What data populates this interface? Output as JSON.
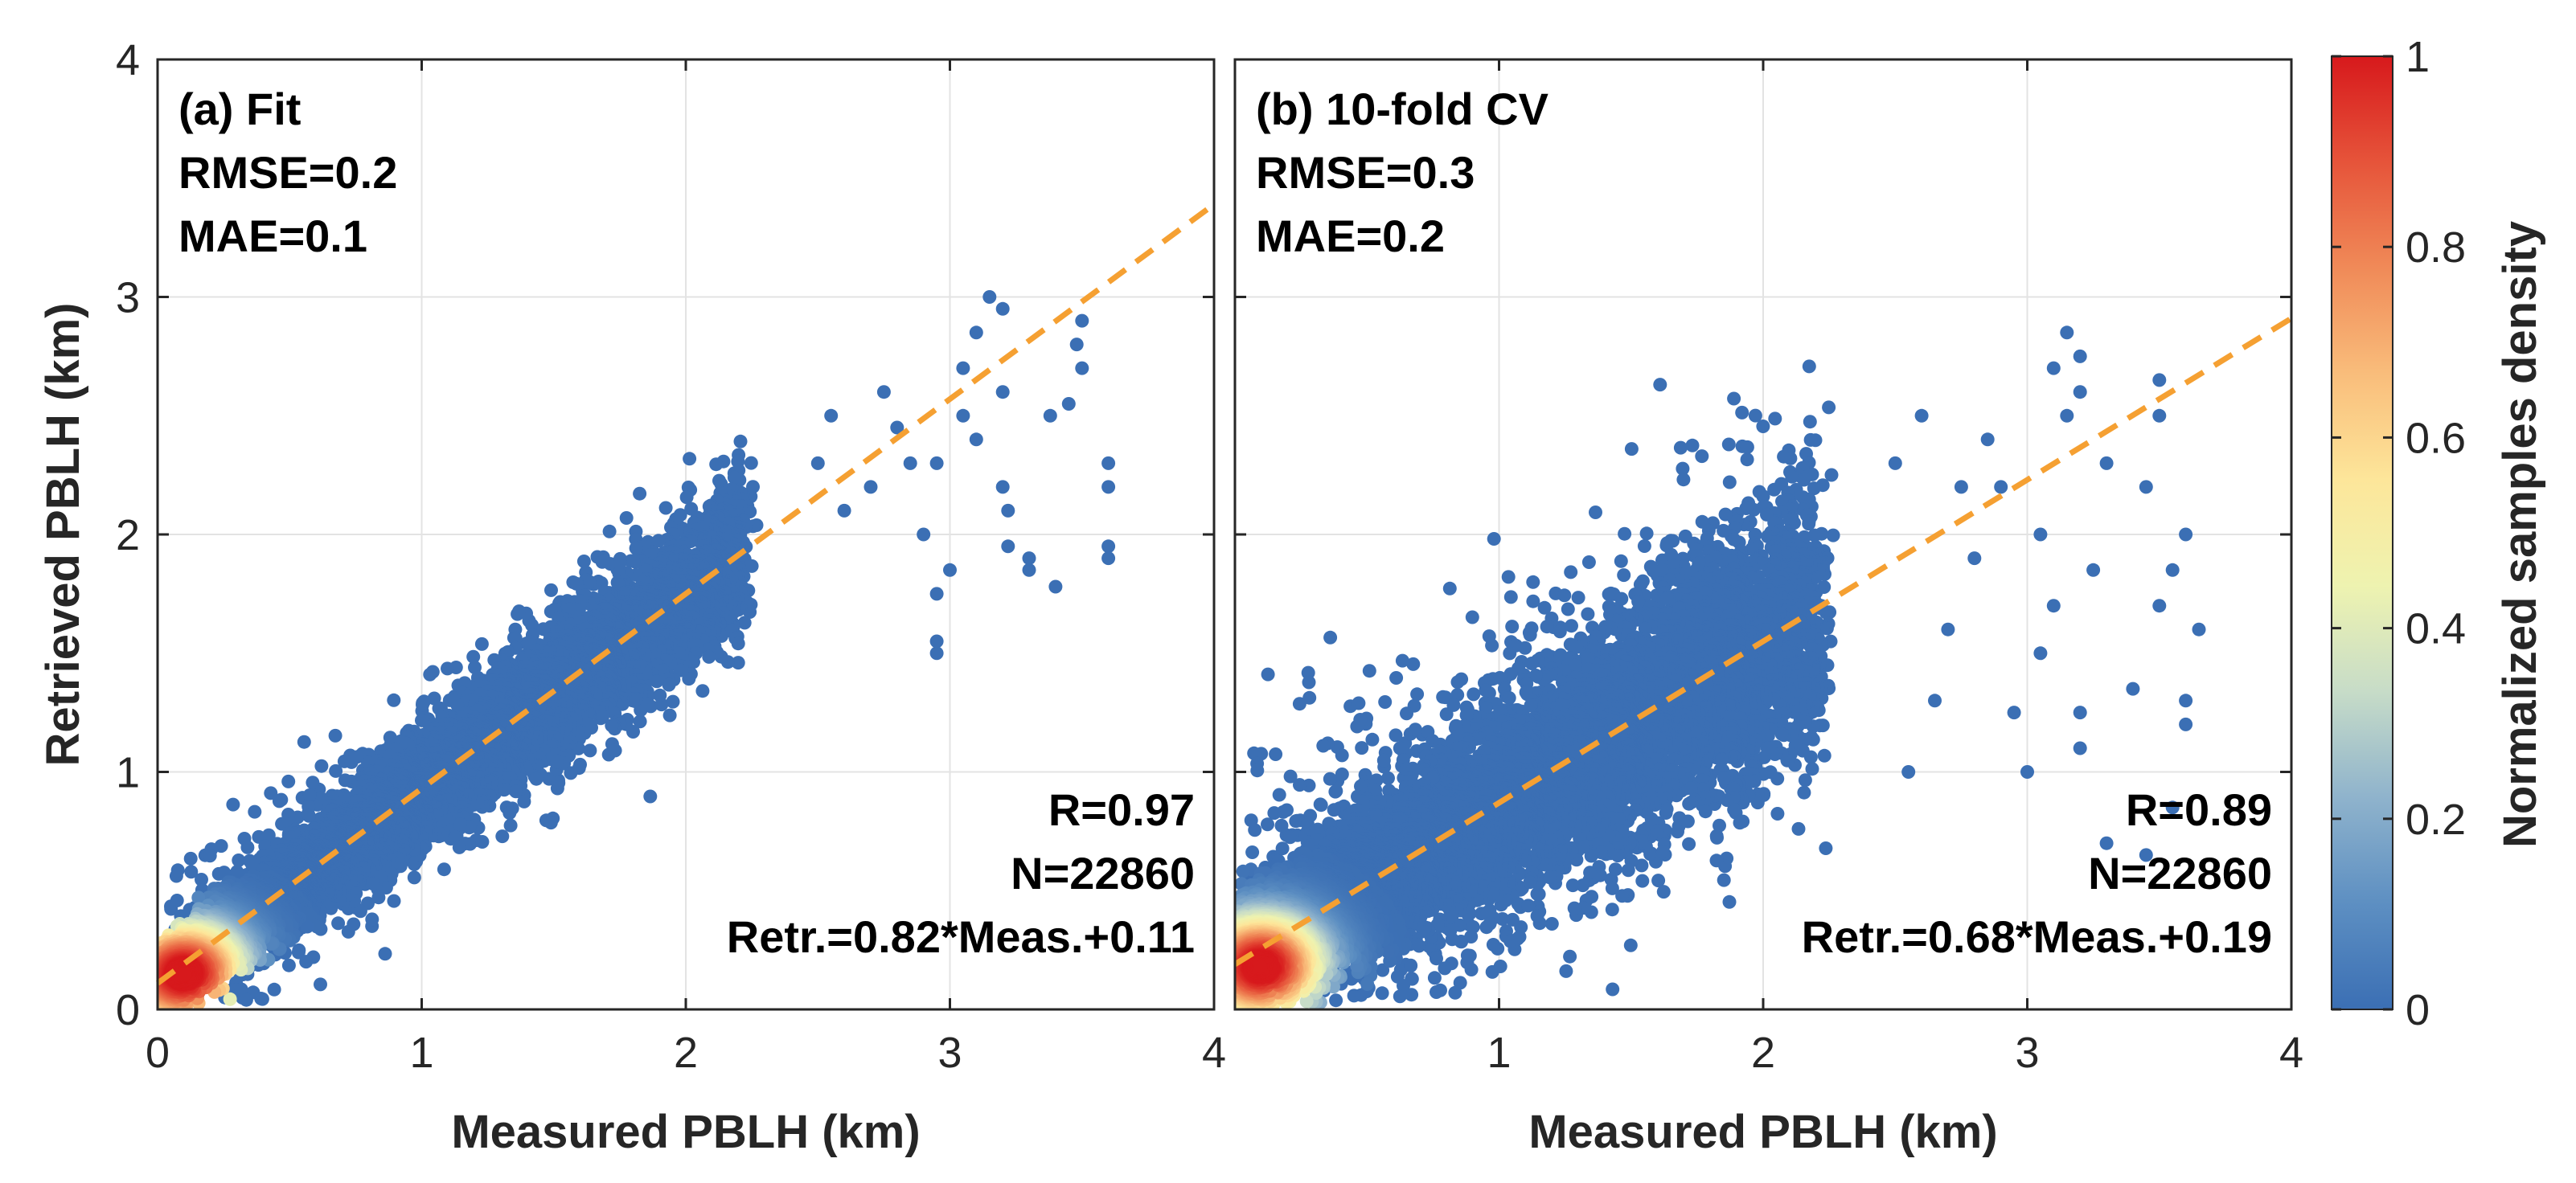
{
  "figure": {
    "ylabel": "Retrieved PBLH (km)",
    "colorbar": {
      "label": "Normalized samples density",
      "ticks": [
        0,
        0.2,
        0.4,
        0.6,
        0.8,
        1
      ],
      "tick_labels": [
        "0",
        "0.2",
        "0.4",
        "0.6",
        "0.8",
        "1"
      ],
      "colormap": [
        "#3b6fb4",
        "#5d8fc2",
        "#8fb3cc",
        "#c7dcc8",
        "#eef3b0",
        "#fde69a",
        "#f9bd7b",
        "#f08a58",
        "#e6543a",
        "#d7191c"
      ]
    },
    "fit_line_color": "#f5a032",
    "point_color_low": "#3b78b8",
    "point_color_high": "#e03a2a"
  },
  "chart_data": [
    {
      "type": "scatter",
      "panel_title": "(a) Fit",
      "stats_top": [
        "RMSE=0.2",
        "MAE=0.1"
      ],
      "stats_bottom": [
        "R=0.97",
        "N=22860",
        "Retr.=0.82*Meas.+0.11"
      ],
      "xlabel": "Measured PBLH (km)",
      "ylabel": "Retrieved PBLH (km)",
      "xlim": [
        0,
        4
      ],
      "ylim": [
        0,
        4
      ],
      "xticks": [
        0,
        1,
        2,
        3,
        4
      ],
      "xtick_labels": [
        "0",
        "1",
        "2",
        "3",
        "4"
      ],
      "yticks": [
        0,
        1,
        2,
        3,
        4
      ],
      "ytick_labels": [
        "0",
        "1",
        "2",
        "3",
        "4"
      ],
      "grid": true,
      "fit_line": {
        "slope": 0.82,
        "intercept": 0.11
      },
      "N": 22860,
      "R": 0.97,
      "RMSE": 0.2,
      "MAE": 0.1,
      "distribution": {
        "density_peak": [
          0.1,
          0.15
        ],
        "x_main_max": 2.2,
        "scatter_band": 0.12,
        "tail_points": [
          [
            3.15,
            3.0
          ],
          [
            3.2,
            2.95
          ],
          [
            3.1,
            2.85
          ],
          [
            3.05,
            2.7
          ],
          [
            3.2,
            2.6
          ],
          [
            3.5,
            2.9
          ],
          [
            3.48,
            2.8
          ],
          [
            3.5,
            2.7
          ],
          [
            3.38,
            2.5
          ],
          [
            3.6,
            2.3
          ],
          [
            3.6,
            2.2
          ],
          [
            3.6,
            1.95
          ],
          [
            3.6,
            1.9
          ],
          [
            3.2,
            2.2
          ],
          [
            3.22,
            2.1
          ],
          [
            3.22,
            1.95
          ],
          [
            3.4,
            1.78
          ],
          [
            3.3,
            1.85
          ],
          [
            3.3,
            1.9
          ],
          [
            3.0,
            1.85
          ],
          [
            2.95,
            1.5
          ],
          [
            2.95,
            1.55
          ],
          [
            2.95,
            1.75
          ],
          [
            2.85,
            2.3
          ],
          [
            2.8,
            2.45
          ],
          [
            2.75,
            2.6
          ],
          [
            2.9,
            2.0
          ],
          [
            2.6,
            2.1
          ],
          [
            2.7,
            2.2
          ],
          [
            2.55,
            2.5
          ],
          [
            2.5,
            2.3
          ],
          [
            3.1,
            2.4
          ],
          [
            3.05,
            2.5
          ],
          [
            2.95,
            2.3
          ],
          [
            3.45,
            2.55
          ]
        ]
      }
    },
    {
      "type": "scatter",
      "panel_title": "(b) 10-fold CV",
      "stats_top": [
        "RMSE=0.3",
        "MAE=0.2"
      ],
      "stats_bottom": [
        "R=0.89",
        "N=22860",
        "Retr.=0.68*Meas.+0.19"
      ],
      "xlabel": "Measured PBLH (km)",
      "xlim": [
        0,
        4
      ],
      "ylim": [
        0,
        4
      ],
      "xticks": [
        0,
        1,
        2,
        3,
        4
      ],
      "xtick_labels": [
        "",
        "1",
        "2",
        "3",
        "4"
      ],
      "yticks": [
        0,
        1,
        2,
        3,
        4
      ],
      "grid": true,
      "fit_line": {
        "slope": 0.68,
        "intercept": 0.19
      },
      "N": 22860,
      "R": 0.89,
      "RMSE": 0.3,
      "MAE": 0.2,
      "distribution": {
        "density_peak": [
          0.1,
          0.18
        ],
        "x_main_max": 2.2,
        "scatter_band": 0.22,
        "tail_points": [
          [
            3.15,
            2.85
          ],
          [
            3.2,
            2.75
          ],
          [
            3.1,
            2.7
          ],
          [
            3.2,
            2.6
          ],
          [
            3.15,
            2.5
          ],
          [
            3.5,
            2.65
          ],
          [
            3.5,
            2.5
          ],
          [
            3.45,
            2.2
          ],
          [
            3.3,
            2.3
          ],
          [
            3.6,
            2.0
          ],
          [
            3.55,
            1.85
          ],
          [
            3.5,
            1.7
          ],
          [
            3.65,
            1.6
          ],
          [
            3.6,
            1.3
          ],
          [
            3.6,
            1.2
          ],
          [
            3.55,
            0.85
          ],
          [
            3.45,
            0.65
          ],
          [
            3.3,
            0.7
          ],
          [
            3.2,
            1.25
          ],
          [
            3.2,
            1.1
          ],
          [
            3.25,
            1.85
          ],
          [
            3.05,
            2.0
          ],
          [
            3.1,
            1.7
          ],
          [
            3.05,
            1.5
          ],
          [
            2.9,
            2.2
          ],
          [
            2.85,
            2.4
          ],
          [
            2.6,
            2.5
          ],
          [
            2.5,
            2.3
          ],
          [
            2.75,
            2.2
          ],
          [
            2.8,
            1.9
          ],
          [
            2.7,
            1.6
          ],
          [
            2.65,
            1.3
          ],
          [
            2.55,
            1.0
          ],
          [
            3.4,
            1.35
          ],
          [
            3.0,
            1.0
          ],
          [
            2.95,
            1.25
          ]
        ]
      }
    }
  ]
}
